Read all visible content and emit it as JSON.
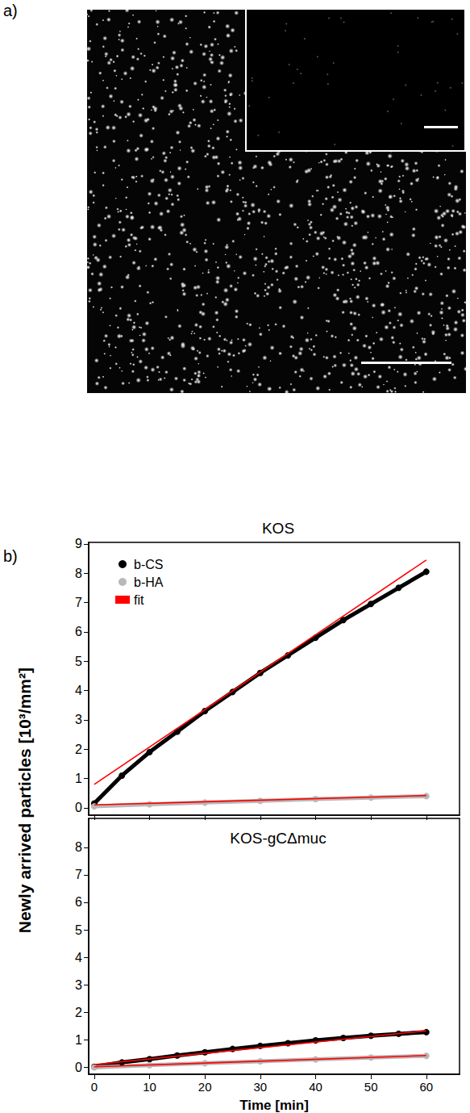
{
  "figure": {
    "panel_labels": [
      "a)",
      "b)"
    ],
    "ylabel": "Newly arrived particles [10³/mm²]"
  },
  "chart_data": [
    {
      "type": "line",
      "title": "KOS",
      "xlim": [
        -1,
        66
      ],
      "xticks": [
        0,
        10,
        20,
        30,
        40,
        50,
        60
      ],
      "ylim": [
        -0.25,
        9.05
      ],
      "yticks": [
        0,
        1,
        2,
        3,
        4,
        5,
        6,
        7,
        8,
        9
      ],
      "tick_labels": "y",
      "grid": false,
      "legend": "upper left",
      "series": [
        {
          "name": "b-CS",
          "color": "#000000",
          "marker": "circle",
          "x": [
            0,
            5,
            10,
            15,
            20,
            25,
            30,
            35,
            40,
            45,
            50,
            55,
            60
          ],
          "values": [
            0.15,
            1.1,
            1.9,
            2.6,
            3.3,
            3.95,
            4.6,
            5.2,
            5.8,
            6.4,
            6.95,
            7.5,
            8.05
          ]
        },
        {
          "name": "b-HA",
          "color": "#b8b8b8",
          "marker": "circle",
          "x": [
            0,
            10,
            20,
            30,
            40,
            50,
            60
          ],
          "values": [
            0.05,
            0.12,
            0.18,
            0.24,
            0.3,
            0.35,
            0.4
          ]
        },
        {
          "name": "fit",
          "color": "#ff0000",
          "line_style": "solid",
          "x": [
            0,
            60
          ],
          "values": [
            0.8,
            8.45
          ]
        },
        {
          "name": "fit",
          "color": "#ff0000",
          "line_style": "solid",
          "x": [
            0,
            60
          ],
          "values": [
            0.1,
            0.42
          ]
        }
      ]
    },
    {
      "type": "line",
      "title": "KOS-gCΔmuc",
      "xlabel": "Time [min]",
      "xlim": [
        -1,
        66
      ],
      "xticks": [
        0,
        10,
        20,
        30,
        40,
        50,
        60
      ],
      "ylim": [
        -0.25,
        9.05
      ],
      "yticks": [
        0,
        1,
        2,
        3,
        4,
        5,
        6,
        7,
        8
      ],
      "grid": false,
      "series": [
        {
          "name": "b-CS",
          "color": "#000000",
          "marker": "circle",
          "x": [
            0,
            5,
            10,
            15,
            20,
            25,
            30,
            35,
            40,
            45,
            50,
            55,
            60
          ],
          "values": [
            0.02,
            0.18,
            0.3,
            0.43,
            0.55,
            0.67,
            0.78,
            0.88,
            0.98,
            1.07,
            1.15,
            1.22,
            1.28
          ]
        },
        {
          "name": "b-HA",
          "color": "#b8b8b8",
          "marker": "circle",
          "x": [
            0,
            10,
            20,
            30,
            40,
            50,
            60
          ],
          "values": [
            0.0,
            0.08,
            0.15,
            0.22,
            0.29,
            0.36,
            0.42
          ]
        },
        {
          "name": "fit",
          "color": "#ff0000",
          "line_style": "solid",
          "x": [
            0,
            60
          ],
          "values": [
            0.1,
            1.33
          ]
        },
        {
          "name": "fit",
          "color": "#ff0000",
          "line_style": "solid",
          "x": [
            0,
            60
          ],
          "values": [
            0.02,
            0.43
          ]
        }
      ]
    }
  ]
}
